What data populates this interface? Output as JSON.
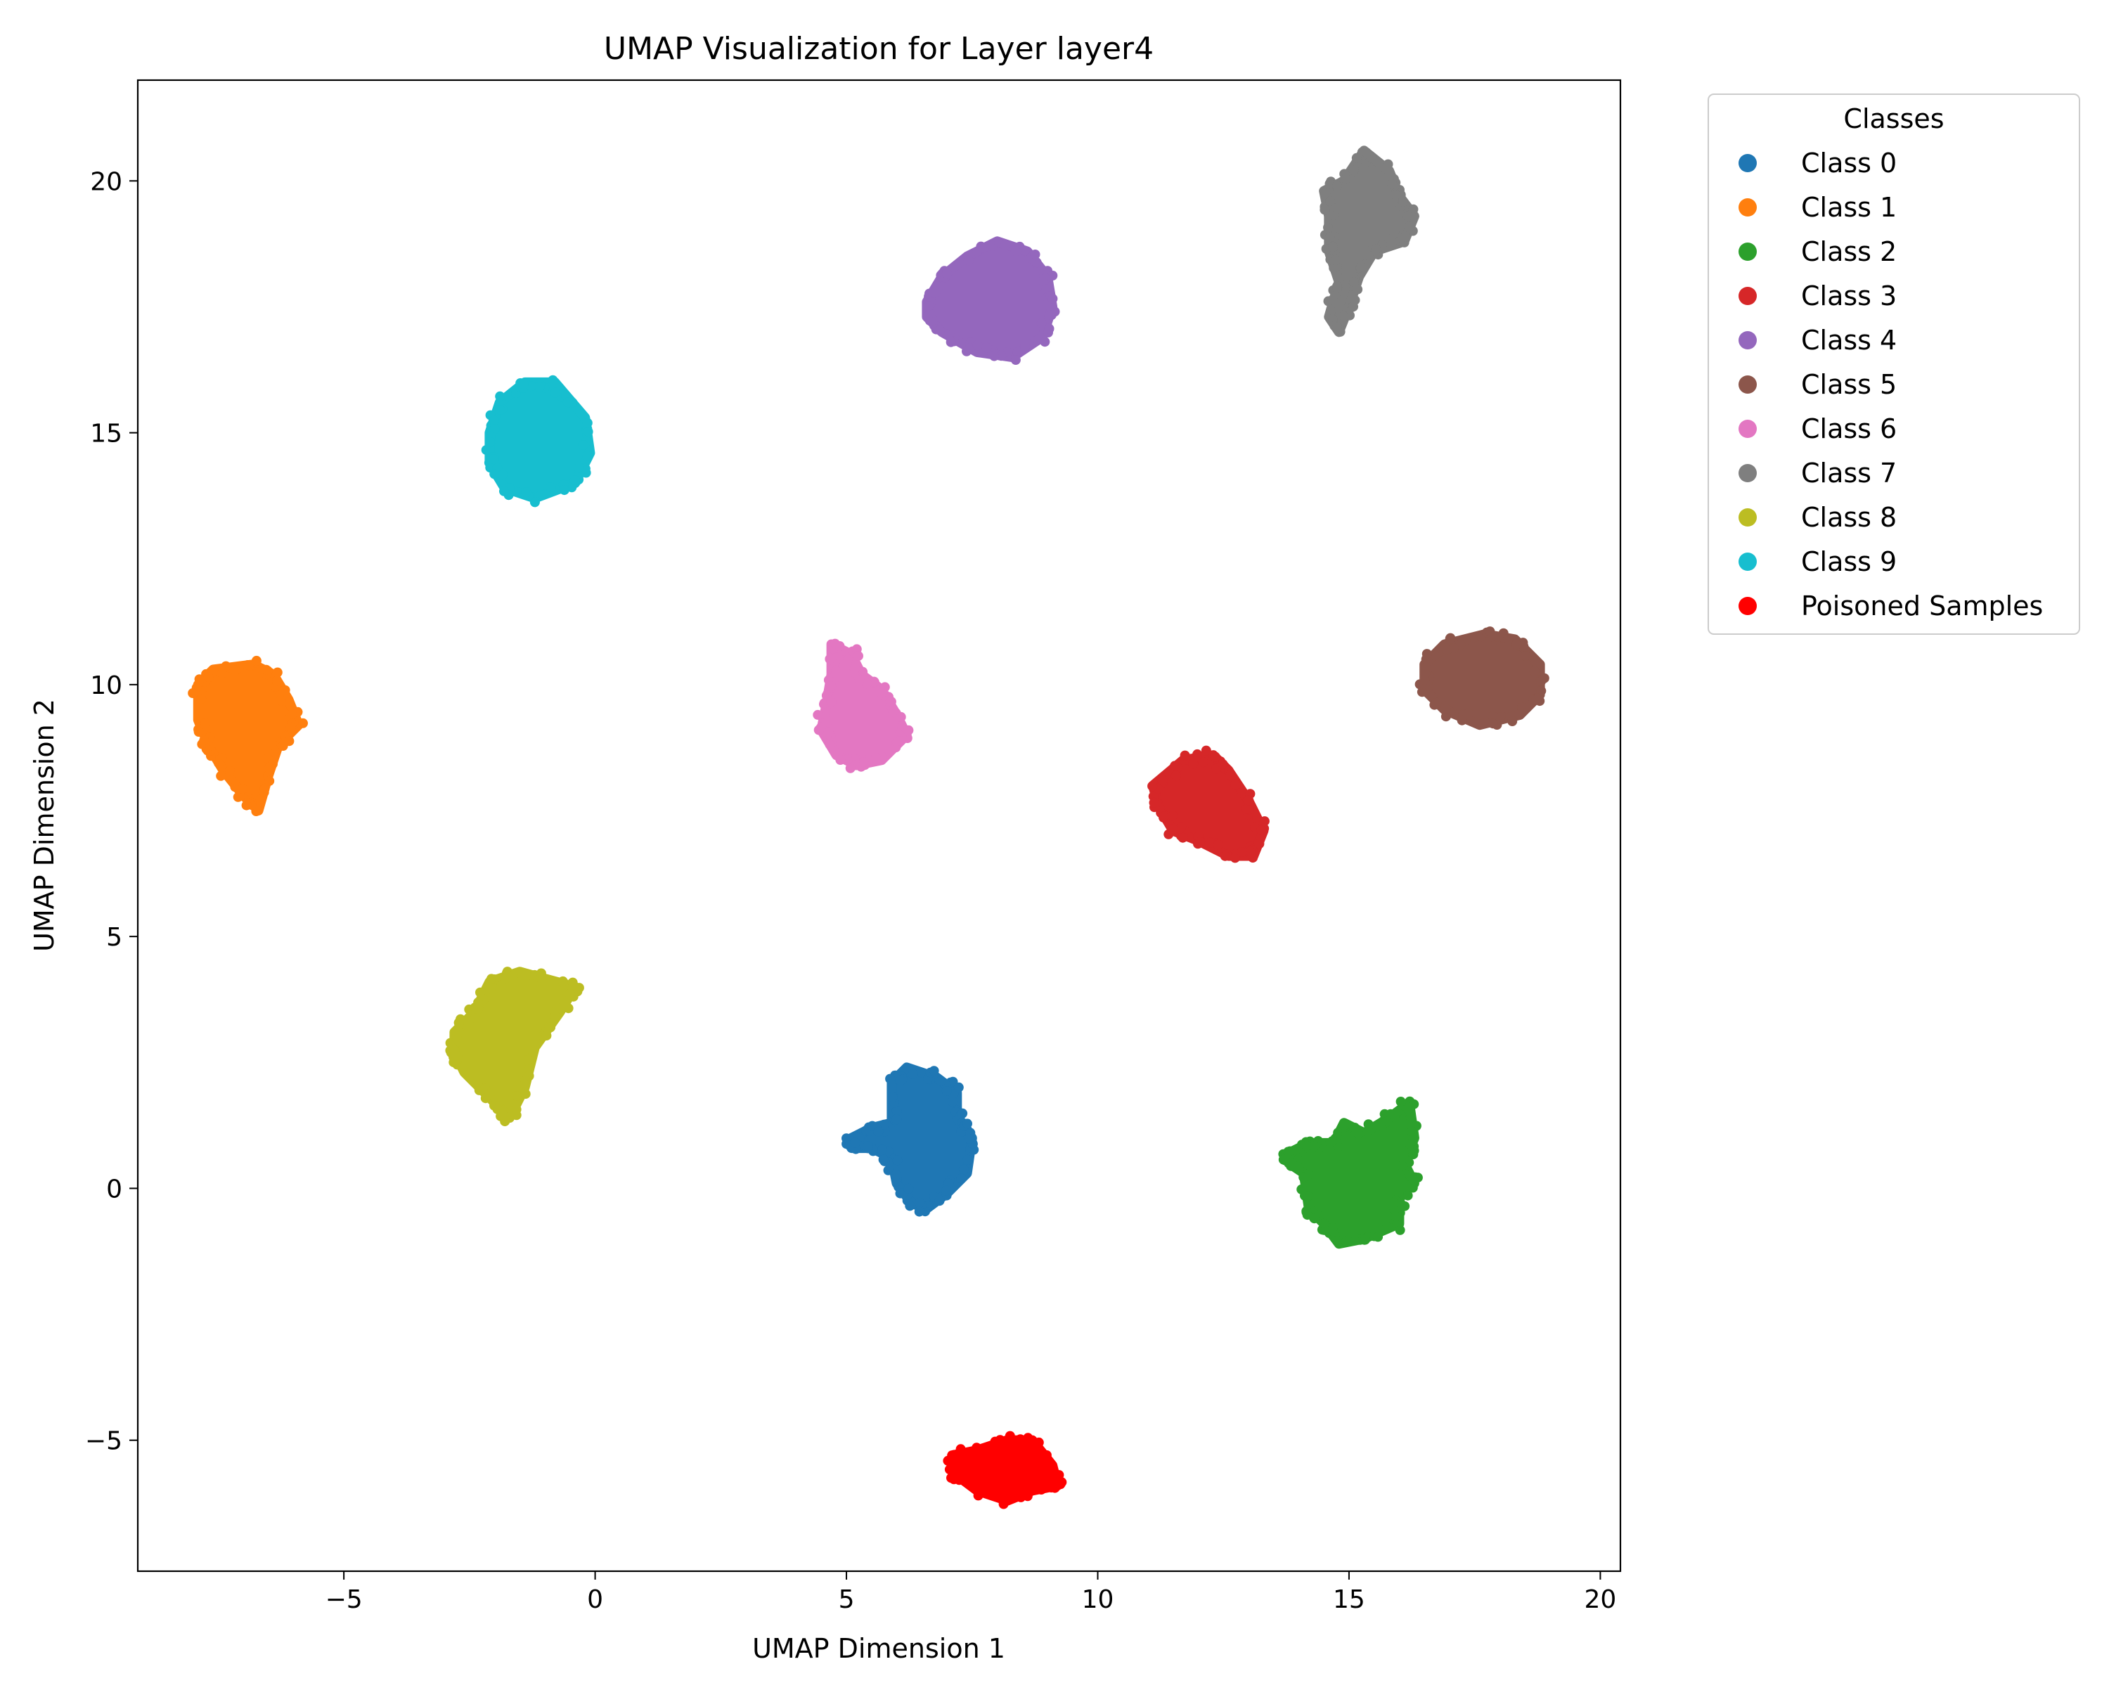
{
  "chart_data": {
    "type": "scatter",
    "title": "UMAP Visualization for Layer layer4",
    "xlabel": "UMAP Dimension 1",
    "ylabel": "UMAP Dimension 2",
    "xlim": [
      -9.1,
      20.4
    ],
    "ylim": [
      -7.6,
      22.0
    ],
    "xticks": [
      -5,
      0,
      5,
      10,
      15,
      20
    ],
    "xtick_labels": [
      "−5",
      "0",
      "5",
      "10",
      "15",
      "20"
    ],
    "yticks": [
      -5,
      0,
      5,
      10,
      15,
      20
    ],
    "ytick_labels": [
      "−5",
      "0",
      "5",
      "10",
      "15",
      "20"
    ],
    "grid": false,
    "legend": {
      "title": "Classes",
      "placement": "outside-upper-right"
    },
    "series": [
      {
        "name": "Class 0",
        "color": "#1f77b4",
        "center": [
          6.6,
          1.0
        ],
        "extent": [
          1.6,
          2.7
        ],
        "outline": [
          [
            5.1,
            1.0
          ],
          [
            5.5,
            1.2
          ],
          [
            5.9,
            1.3
          ],
          [
            5.9,
            2.1
          ],
          [
            6.2,
            2.4
          ],
          [
            6.8,
            2.2
          ],
          [
            7.2,
            1.9
          ],
          [
            7.2,
            1.4
          ],
          [
            7.5,
            1.0
          ],
          [
            7.4,
            0.3
          ],
          [
            7.0,
            -0.1
          ],
          [
            6.6,
            -0.4
          ],
          [
            6.3,
            -0.3
          ],
          [
            6.0,
            0.1
          ],
          [
            5.9,
            0.6
          ],
          [
            5.5,
            0.8
          ],
          [
            5.1,
            0.8
          ]
        ]
      },
      {
        "name": "Class 1",
        "color": "#ff7f0e",
        "center": [
          -6.9,
          9.3
        ],
        "extent": [
          2.1,
          3.0
        ],
        "outline": [
          [
            -7.9,
            10.0
          ],
          [
            -7.6,
            10.3
          ],
          [
            -6.8,
            10.4
          ],
          [
            -6.4,
            10.2
          ],
          [
            -6.1,
            9.7
          ],
          [
            -5.9,
            9.2
          ],
          [
            -6.3,
            8.8
          ],
          [
            -6.5,
            8.2
          ],
          [
            -6.7,
            7.5
          ],
          [
            -7.0,
            7.8
          ],
          [
            -7.4,
            8.3
          ],
          [
            -7.7,
            8.8
          ],
          [
            -7.9,
            9.3
          ]
        ]
      },
      {
        "name": "Class 2",
        "color": "#2ca02c",
        "center": [
          15.3,
          0.4
        ],
        "extent": [
          2.5,
          2.9
        ],
        "outline": [
          [
            13.8,
            0.7
          ],
          [
            14.2,
            0.9
          ],
          [
            14.7,
            0.9
          ],
          [
            14.9,
            1.3
          ],
          [
            15.3,
            1.1
          ],
          [
            15.8,
            1.4
          ],
          [
            16.2,
            1.7
          ],
          [
            16.3,
            1.0
          ],
          [
            16.1,
            0.5
          ],
          [
            16.3,
            0.1
          ],
          [
            16.0,
            -0.2
          ],
          [
            16.0,
            -0.7
          ],
          [
            15.3,
            -1.0
          ],
          [
            14.8,
            -1.1
          ],
          [
            14.5,
            -0.7
          ],
          [
            14.2,
            -0.4
          ],
          [
            14.1,
            0.3
          ],
          [
            13.8,
            0.5
          ]
        ]
      },
      {
        "name": "Class 3",
        "color": "#d62728",
        "center": [
          12.4,
          7.6
        ],
        "extent": [
          2.2,
          2.1
        ],
        "outline": [
          [
            11.1,
            8.0
          ],
          [
            11.7,
            8.5
          ],
          [
            12.3,
            8.6
          ],
          [
            12.6,
            8.3
          ],
          [
            13.0,
            7.7
          ],
          [
            13.3,
            7.1
          ],
          [
            13.1,
            6.6
          ],
          [
            12.6,
            6.6
          ],
          [
            12.0,
            6.9
          ],
          [
            11.5,
            7.1
          ],
          [
            11.2,
            7.6
          ]
        ]
      },
      {
        "name": "Class 4",
        "color": "#9467bd",
        "center": [
          7.9,
          17.5
        ],
        "extent": [
          2.7,
          2.3
        ],
        "outline": [
          [
            6.6,
            17.6
          ],
          [
            6.9,
            18.1
          ],
          [
            7.4,
            18.5
          ],
          [
            8.0,
            18.8
          ],
          [
            8.6,
            18.6
          ],
          [
            9.0,
            18.1
          ],
          [
            9.1,
            17.5
          ],
          [
            8.9,
            16.9
          ],
          [
            8.3,
            16.5
          ],
          [
            7.6,
            16.6
          ],
          [
            6.9,
            17.0
          ],
          [
            6.6,
            17.3
          ]
        ]
      },
      {
        "name": "Class 5",
        "color": "#8c564b",
        "center": [
          17.8,
          10.1
        ],
        "extent": [
          2.6,
          1.9
        ],
        "outline": [
          [
            16.5,
            10.4
          ],
          [
            16.9,
            10.8
          ],
          [
            17.7,
            11.0
          ],
          [
            18.3,
            10.9
          ],
          [
            18.8,
            10.4
          ],
          [
            18.8,
            9.8
          ],
          [
            18.4,
            9.4
          ],
          [
            17.6,
            9.2
          ],
          [
            16.9,
            9.5
          ],
          [
            16.5,
            9.9
          ]
        ]
      },
      {
        "name": "Class 6",
        "color": "#e377c2",
        "center": [
          5.3,
          9.4
        ],
        "extent": [
          2.2,
          2.4
        ],
        "outline": [
          [
            4.7,
            10.8
          ],
          [
            5.1,
            10.6
          ],
          [
            5.3,
            10.2
          ],
          [
            5.7,
            9.9
          ],
          [
            6.0,
            9.4
          ],
          [
            6.2,
            9.0
          ],
          [
            5.7,
            8.5
          ],
          [
            5.2,
            8.4
          ],
          [
            4.8,
            8.6
          ],
          [
            4.5,
            9.1
          ],
          [
            4.6,
            9.6
          ],
          [
            4.7,
            10.2
          ]
        ]
      },
      {
        "name": "Class 7",
        "color": "#7f7f7f",
        "center": [
          15.4,
          19.2
        ],
        "extent": [
          2.3,
          3.7
        ],
        "outline": [
          [
            14.5,
            19.8
          ],
          [
            14.9,
            20.0
          ],
          [
            15.3,
            20.6
          ],
          [
            15.8,
            20.2
          ],
          [
            16.0,
            19.7
          ],
          [
            16.3,
            19.3
          ],
          [
            16.1,
            18.8
          ],
          [
            15.5,
            18.6
          ],
          [
            15.2,
            18.1
          ],
          [
            15.0,
            17.5
          ],
          [
            14.8,
            17.0
          ],
          [
            14.6,
            17.3
          ],
          [
            14.8,
            18.0
          ],
          [
            14.6,
            18.6
          ],
          [
            14.6,
            19.3
          ]
        ]
      },
      {
        "name": "Class 8",
        "color": "#bcbd22",
        "center": [
          -1.6,
          2.9
        ],
        "extent": [
          2.6,
          2.9
        ],
        "outline": [
          [
            -2.8,
            3.1
          ],
          [
            -2.4,
            3.5
          ],
          [
            -2.1,
            4.1
          ],
          [
            -1.5,
            4.3
          ],
          [
            -0.4,
            4.0
          ],
          [
            -0.7,
            3.5
          ],
          [
            -1.2,
            2.8
          ],
          [
            -1.4,
            2.0
          ],
          [
            -1.7,
            1.4
          ],
          [
            -2.1,
            1.8
          ],
          [
            -2.6,
            2.3
          ],
          [
            -2.8,
            2.7
          ]
        ]
      },
      {
        "name": "Class 9",
        "color": "#17becf",
        "center": [
          -1.2,
          14.9
        ],
        "extent": [
          2.0,
          2.4
        ],
        "outline": [
          [
            -2.1,
            15.0
          ],
          [
            -1.9,
            15.6
          ],
          [
            -1.4,
            16.0
          ],
          [
            -0.8,
            16.0
          ],
          [
            -0.2,
            15.3
          ],
          [
            -0.1,
            14.6
          ],
          [
            -0.4,
            14.0
          ],
          [
            -1.2,
            13.7
          ],
          [
            -1.8,
            13.9
          ],
          [
            -2.1,
            14.4
          ]
        ]
      },
      {
        "name": "Poisoned Samples",
        "color": "#ff0000",
        "center": [
          8.1,
          -5.5
        ],
        "extent": [
          2.1,
          1.3
        ],
        "outline": [
          [
            7.1,
            -5.3
          ],
          [
            7.6,
            -5.2
          ],
          [
            8.2,
            -5.0
          ],
          [
            8.7,
            -5.0
          ],
          [
            9.1,
            -5.5
          ],
          [
            9.2,
            -5.9
          ],
          [
            8.7,
            -6.0
          ],
          [
            8.2,
            -6.2
          ],
          [
            7.6,
            -6.0
          ],
          [
            7.2,
            -5.7
          ]
        ]
      }
    ]
  }
}
